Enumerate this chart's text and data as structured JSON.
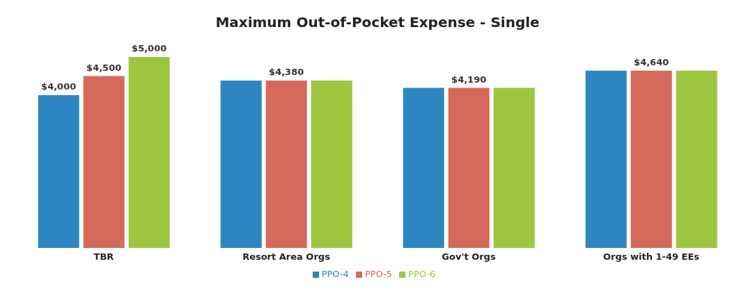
{
  "chart_data": {
    "type": "bar",
    "title": "Maximum Out-of-Pocket Expense - Single",
    "categories": [
      "TBR",
      "Resort Area Orgs",
      "Gov't Orgs",
      "Orgs with 1-49 EEs"
    ],
    "series": [
      {
        "name": "PPO-4",
        "color": "#2e86c1",
        "values": [
          4000,
          4380,
          4190,
          4640
        ],
        "value_labels": [
          "$4,000",
          null,
          null,
          null
        ]
      },
      {
        "name": "PPO-5",
        "color": "#d5695c",
        "values": [
          4500,
          4380,
          4190,
          4640
        ],
        "value_labels": [
          "$4,500",
          "$4,380",
          "$4,190",
          "$4,640"
        ]
      },
      {
        "name": "PPO-6",
        "color": "#9cc63f",
        "values": [
          5000,
          4380,
          4190,
          4640
        ],
        "value_labels": [
          "$5,000",
          null,
          null,
          null
        ]
      }
    ],
    "legend": "bottom",
    "grid": false
  }
}
